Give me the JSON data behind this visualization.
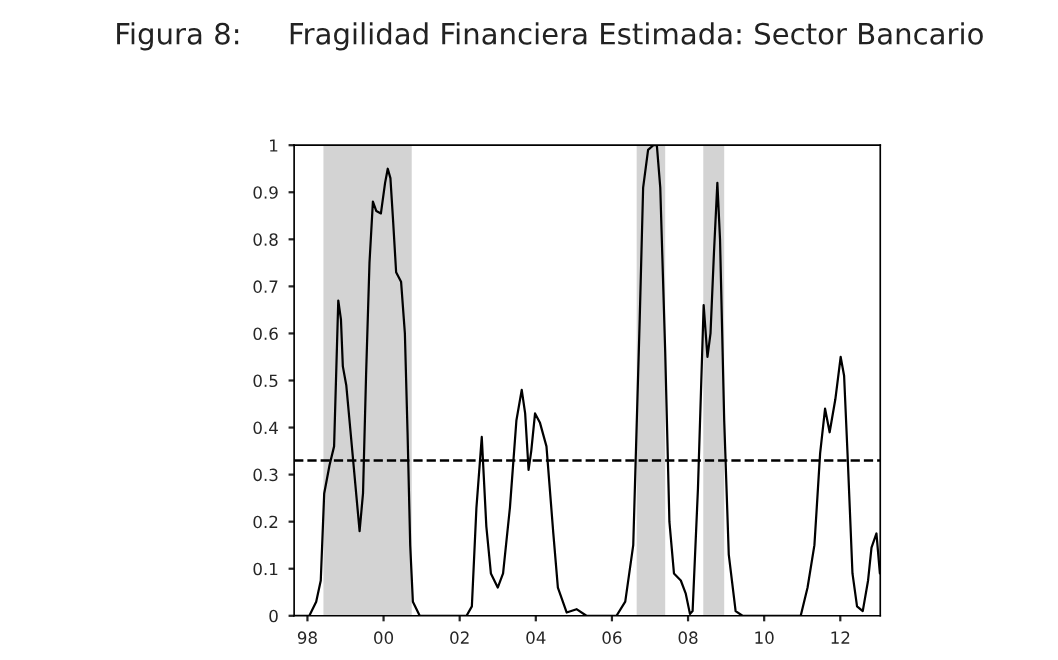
{
  "chart_data": {
    "type": "line",
    "title": "Figura 8:     Fragilidad Financiera Estimada: Sector Bancario",
    "x": [
      1997.65,
      1998.05,
      1998.23,
      1998.35,
      1998.44,
      1998.58,
      1998.7,
      1998.81,
      1998.88,
      1998.93,
      1999.02,
      1999.19,
      1999.37,
      1999.46,
      1999.54,
      1999.63,
      1999.72,
      1999.81,
      1999.93,
      2000.04,
      2000.11,
      2000.18,
      2000.25,
      2000.33,
      2000.46,
      2000.56,
      2000.63,
      2000.7,
      2000.77,
      2000.95,
      2002.18,
      2002.32,
      2002.44,
      2002.58,
      2002.7,
      2002.82,
      2003.0,
      2003.14,
      2003.32,
      2003.49,
      2003.63,
      2003.72,
      2003.81,
      2003.88,
      2003.98,
      2004.11,
      2004.28,
      2004.46,
      2004.58,
      2004.81,
      2005.07,
      2005.33,
      2006.12,
      2006.35,
      2006.56,
      2006.73,
      2006.82,
      2006.95,
      2007.09,
      2007.18,
      2007.27,
      2007.4,
      2007.51,
      2007.63,
      2007.81,
      2007.94,
      2008.05,
      2008.12,
      2008.26,
      2008.41,
      2008.51,
      2008.59,
      2008.68,
      2008.77,
      2008.84,
      2008.95,
      2009.07,
      2009.25,
      2009.43,
      2010.96,
      2011.14,
      2011.32,
      2011.47,
      2011.6,
      2011.72,
      2011.87,
      2012.01,
      2012.1,
      2012.19,
      2012.32,
      2012.44,
      2012.59,
      2012.73,
      2012.82,
      2012.95,
      2013.04
    ],
    "series": [
      {
        "color": "#000000",
        "values": [
          0,
          0,
          0.03,
          0.075,
          0.26,
          0.32,
          0.36,
          0.67,
          0.63,
          0.53,
          0.49,
          0.34,
          0.18,
          0.26,
          0.51,
          0.75,
          0.88,
          0.86,
          0.855,
          0.92,
          0.95,
          0.93,
          0.84,
          0.73,
          0.71,
          0.6,
          0.39,
          0.15,
          0.03,
          0,
          0,
          0.02,
          0.23,
          0.38,
          0.19,
          0.09,
          0.06,
          0.09,
          0.23,
          0.415,
          0.48,
          0.43,
          0.31,
          0.35,
          0.43,
          0.41,
          0.36,
          0.175,
          0.06,
          0.007,
          0.014,
          0,
          0,
          0.03,
          0.15,
          0.63,
          0.91,
          0.99,
          1.0,
          1.0,
          0.91,
          0.56,
          0.2,
          0.09,
          0.075,
          0.047,
          0.004,
          0.01,
          0.27,
          0.66,
          0.55,
          0.6,
          0.77,
          0.92,
          0.8,
          0.415,
          0.13,
          0.01,
          0,
          0,
          0.06,
          0.15,
          0.345,
          0.44,
          0.39,
          0.46,
          0.55,
          0.51,
          0.345,
          0.09,
          0.02,
          0.01,
          0.075,
          0.145,
          0.175,
          0.09
        ]
      }
    ],
    "xlim": [
      1997.65,
      2013.05
    ],
    "xticks": [
      {
        "value": 1998,
        "label": "98"
      },
      {
        "value": 2000,
        "label": "00"
      },
      {
        "value": 2002,
        "label": "02"
      },
      {
        "value": 2004,
        "label": "04"
      },
      {
        "value": 2006,
        "label": "06"
      },
      {
        "value": 2008,
        "label": "08"
      },
      {
        "value": 2010,
        "label": "10"
      },
      {
        "value": 2012,
        "label": "12"
      }
    ],
    "ylim": [
      0,
      1
    ],
    "yticks": [
      0,
      0.1,
      0.2,
      0.3,
      0.4,
      0.5,
      0.6,
      0.7,
      0.8,
      0.9,
      1
    ],
    "ref_lines": [
      {
        "axis": "y",
        "value": 0.33,
        "line_style": "dashed",
        "color": "#000000"
      }
    ],
    "bands": [
      {
        "axis": "x",
        "from": 1998.42,
        "to": 2000.74,
        "color": "#d3d3d3"
      },
      {
        "axis": "x",
        "from": 2006.65,
        "to": 2007.4,
        "color": "#d3d3d3"
      },
      {
        "axis": "x",
        "from": 2008.4,
        "to": 2008.95,
        "color": "#d3d3d3"
      }
    ],
    "grid": false,
    "legend": false,
    "line_style": "solid",
    "marker": "none"
  }
}
